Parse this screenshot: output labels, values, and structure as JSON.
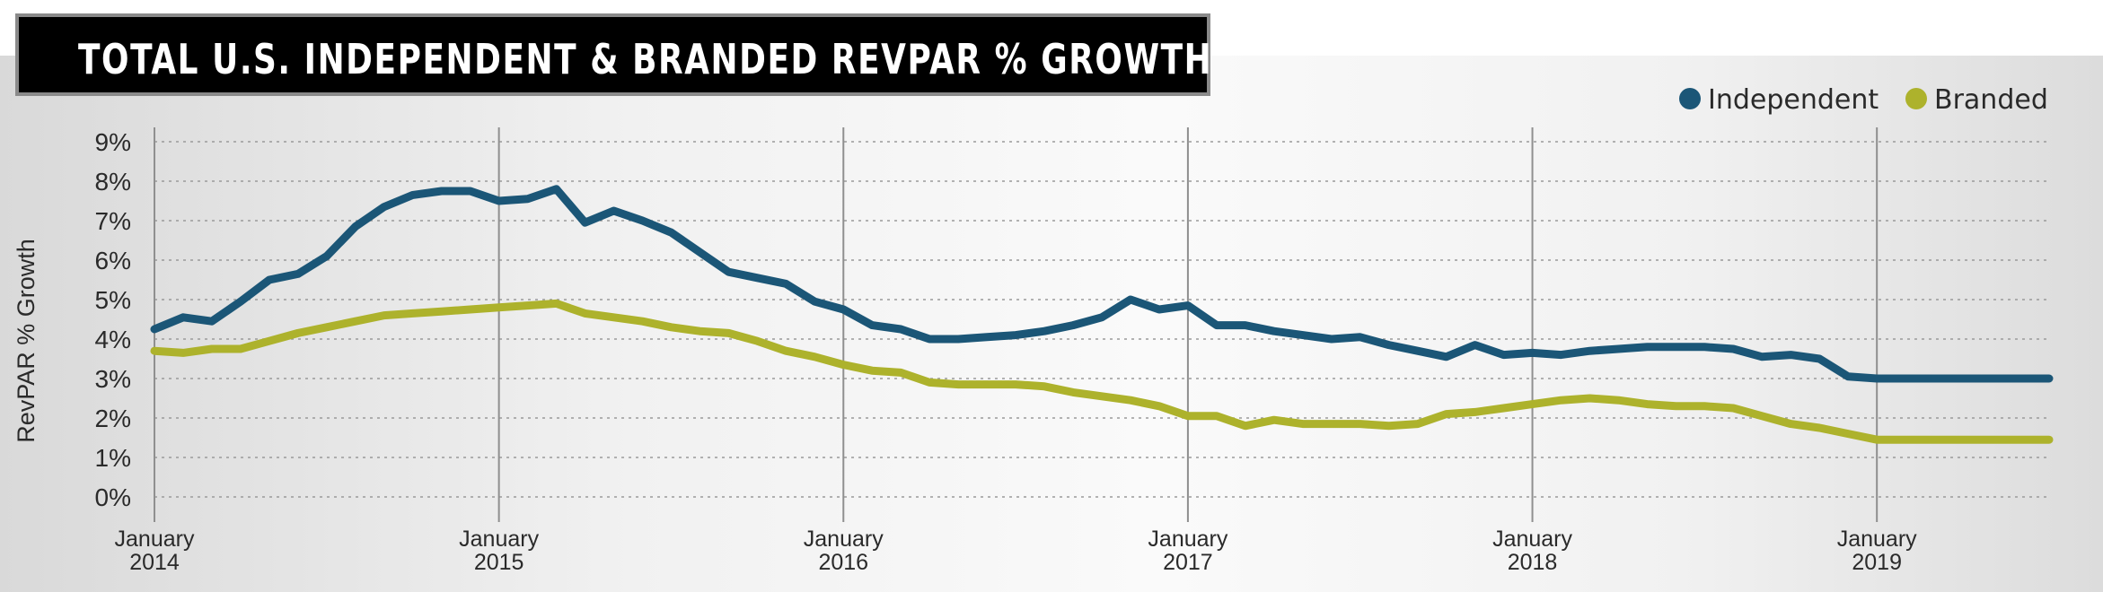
{
  "header": {
    "title": "TOTAL U.S. INDEPENDENT & BRANDED REVPAR % GROWTH",
    "title_mark": "**"
  },
  "colors": {
    "independent": "#1b5677",
    "branded": "#adb22c",
    "gridline": "#9a9a9a",
    "year_line": "#8f8f8f"
  },
  "chart_data": {
    "type": "line",
    "title": "TOTAL U.S. INDEPENDENT & BRANDED REVPAR % GROWTH**",
    "ylabel": "RevPAR % Growth",
    "xlabel": "",
    "ylim": [
      0,
      9
    ],
    "y_ticks": [
      "0%",
      "1%",
      "2%",
      "3%",
      "4%",
      "5%",
      "6%",
      "7%",
      "8%",
      "9%"
    ],
    "x_ticks": [
      {
        "month": "January",
        "year": "2014"
      },
      {
        "month": "January",
        "year": "2015"
      },
      {
        "month": "January",
        "year": "2016"
      },
      {
        "month": "January",
        "year": "2017"
      },
      {
        "month": "January",
        "year": "2018"
      },
      {
        "month": "January",
        "year": "2019"
      }
    ],
    "x_start": "2014-01",
    "x_end": "2019-07",
    "grid": "horizontal dotted",
    "legend_position": "top-right",
    "x": [
      "2014-01",
      "2014-02",
      "2014-03",
      "2014-04",
      "2014-05",
      "2014-06",
      "2014-07",
      "2014-08",
      "2014-09",
      "2014-10",
      "2014-11",
      "2014-12",
      "2015-01",
      "2015-02",
      "2015-03",
      "2015-04",
      "2015-05",
      "2015-06",
      "2015-07",
      "2015-08",
      "2015-09",
      "2015-10",
      "2015-11",
      "2015-12",
      "2016-01",
      "2016-02",
      "2016-03",
      "2016-04",
      "2016-05",
      "2016-06",
      "2016-07",
      "2016-08",
      "2016-09",
      "2016-10",
      "2016-11",
      "2016-12",
      "2017-01",
      "2017-02",
      "2017-03",
      "2017-04",
      "2017-05",
      "2017-06",
      "2017-07",
      "2017-08",
      "2017-09",
      "2017-10",
      "2017-11",
      "2017-12",
      "2018-01",
      "2018-02",
      "2018-03",
      "2018-04",
      "2018-05",
      "2018-06",
      "2018-07",
      "2018-08",
      "2018-09",
      "2018-10",
      "2018-11",
      "2018-12",
      "2019-01",
      "2019-02",
      "2019-03",
      "2019-04",
      "2019-05",
      "2019-06",
      "2019-07"
    ],
    "series": [
      {
        "name": "Independent",
        "color": "#1b5677",
        "values": [
          4.25,
          4.55,
          4.45,
          4.95,
          5.5,
          5.65,
          6.1,
          6.85,
          7.35,
          7.65,
          7.75,
          7.75,
          7.5,
          7.55,
          7.8,
          6.95,
          7.25,
          7.0,
          6.7,
          6.2,
          5.7,
          5.55,
          5.4,
          4.95,
          4.75,
          4.35,
          4.25,
          4.0,
          4.0,
          4.05,
          4.1,
          4.2,
          4.35,
          4.55,
          5.0,
          4.75,
          4.85,
          4.35,
          4.35,
          4.2,
          4.1,
          4.0,
          4.05,
          3.85,
          3.7,
          3.55,
          3.85,
          3.6,
          3.65,
          3.6,
          3.7,
          3.75,
          3.8,
          3.8,
          3.8,
          3.75,
          3.55,
          3.6,
          3.5,
          3.05,
          3.0,
          3.0,
          3.0,
          3.0,
          3.0,
          3.0,
          3.0
        ]
      },
      {
        "name": "Branded",
        "color": "#adb22c",
        "values": [
          3.7,
          3.65,
          3.75,
          3.75,
          3.95,
          4.15,
          4.3,
          4.45,
          4.6,
          4.65,
          4.7,
          4.75,
          4.8,
          4.85,
          4.9,
          4.65,
          4.55,
          4.45,
          4.3,
          4.2,
          4.15,
          3.95,
          3.7,
          3.55,
          3.35,
          3.2,
          3.15,
          2.9,
          2.85,
          2.85,
          2.85,
          2.8,
          2.65,
          2.55,
          2.45,
          2.3,
          2.05,
          2.05,
          1.8,
          1.95,
          1.85,
          1.85,
          1.85,
          1.8,
          1.85,
          2.1,
          2.15,
          2.25,
          2.35,
          2.45,
          2.5,
          2.45,
          2.35,
          2.3,
          2.3,
          2.25,
          2.05,
          1.85,
          1.75,
          1.6,
          1.45,
          1.45,
          1.45,
          1.45,
          1.45,
          1.45,
          1.45
        ]
      }
    ]
  }
}
